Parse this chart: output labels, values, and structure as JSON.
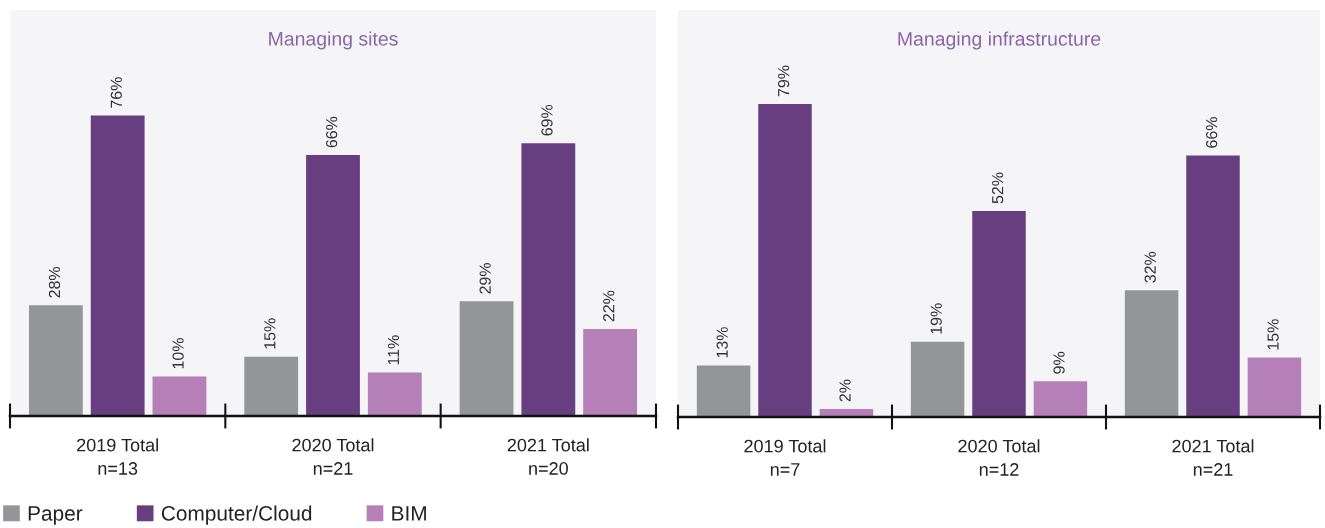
{
  "chart_data": [
    {
      "type": "bar",
      "title": "Managing sites",
      "categories": [
        "2019 Total\nn=13",
        "2020 Total\nn=21",
        "2021 Total\nn=20"
      ],
      "series": [
        {
          "name": "Paper",
          "color": "#939598",
          "values": [
            28,
            15,
            29
          ],
          "value_labels": [
            "28%",
            "15%",
            "29%"
          ]
        },
        {
          "name": "Computer/Cloud",
          "color": "#673f81",
          "values": [
            76,
            66,
            69
          ],
          "value_labels": [
            "76%",
            "66%",
            "69%"
          ]
        },
        {
          "name": "BIM",
          "color": "#b57fb8",
          "values": [
            10,
            11,
            22
          ],
          "value_labels": [
            "10%",
            "11%",
            "22%"
          ]
        }
      ],
      "legend": "bottom left",
      "grid": false
    },
    {
      "type": "bar",
      "title": "Managing infrastructure",
      "categories": [
        "2019 Total\nn=7",
        "2020 Total\nn=12",
        "2021 Total\nn=21"
      ],
      "series": [
        {
          "color": "#939598",
          "values": [
            13,
            19,
            32
          ],
          "value_labels": [
            "13%",
            "19%",
            "32%"
          ]
        },
        {
          "color": "#673f81",
          "values": [
            79,
            52,
            66
          ],
          "value_labels": [
            "79%",
            "52%",
            "66%"
          ]
        },
        {
          "color": "#b57fb8",
          "values": [
            2,
            9,
            15
          ],
          "value_labels": [
            "2%",
            "9%",
            "15%"
          ]
        }
      ],
      "grid": false
    }
  ]
}
